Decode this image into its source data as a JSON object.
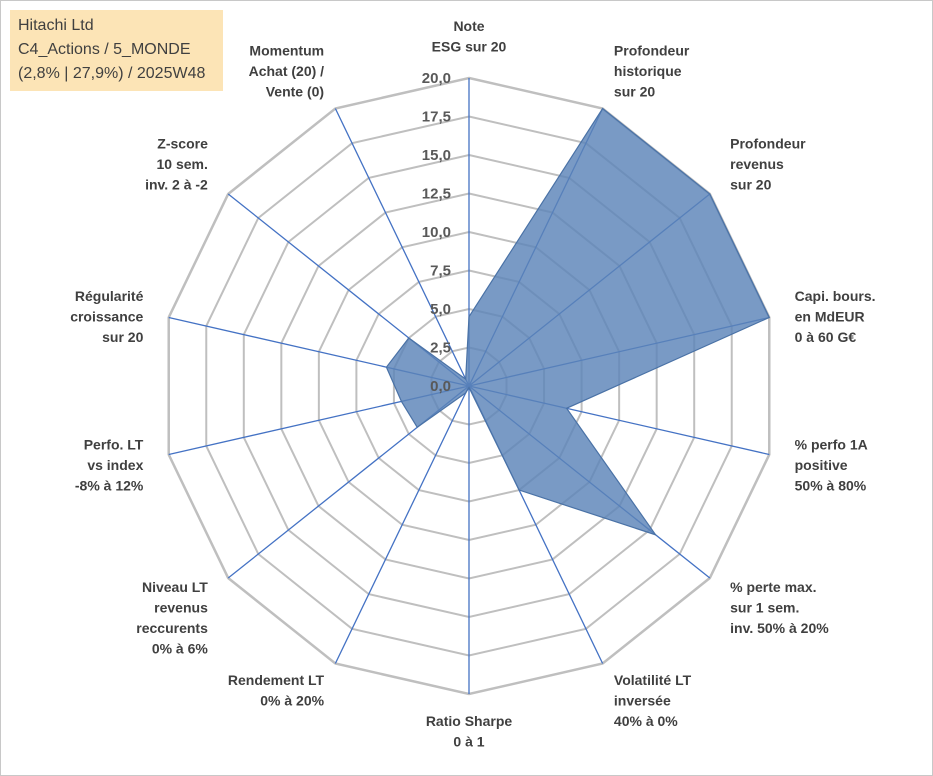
{
  "info": {
    "line1": "Hitachi Ltd",
    "line2": "C4_Actions / 5_MONDE",
    "line3": "(2,8% | 27,9%) / 2025W48"
  },
  "chart_data": {
    "type": "radar",
    "title": "",
    "rmin": 0,
    "rmax": 20,
    "tick_step": 2.5,
    "tick_labels": [
      "0,0",
      "2,5",
      "5,0",
      "7,5",
      "10,0",
      "12,5",
      "15,0",
      "17,5",
      "20,0"
    ],
    "gridlines": 8,
    "axes": [
      {
        "label": [
          "Note",
          "ESG sur 20"
        ],
        "value": 4.5
      },
      {
        "label": [
          "Profondeur",
          "historique",
          "sur 20"
        ],
        "value": 20.0
      },
      {
        "label": [
          "Profondeur",
          "revenus",
          "sur 20"
        ],
        "value": 20.0
      },
      {
        "label": [
          "Capi. bours.",
          "en MdEUR",
          "0 à 60 G€"
        ],
        "value": 20.0
      },
      {
        "label": [
          "% perfo 1A",
          "positive",
          "50% à 80%"
        ],
        "value": 6.5
      },
      {
        "label": [
          "% perte max.",
          "sur 1 sem.",
          "inv. 50% à 20%"
        ],
        "value": 15.5
      },
      {
        "label": [
          "Volatilité LT",
          "inversée",
          "40% à 0%"
        ],
        "value": 7.5
      },
      {
        "label": [
          "Ratio Sharpe",
          "0 à 1"
        ],
        "value": 0.1
      },
      {
        "label": [
          "Rendement LT",
          "0% à 20%"
        ],
        "value": 0.5
      },
      {
        "label": [
          "Niveau LT",
          "revenus",
          "reccurents",
          "0% à 6%"
        ],
        "value": 4.3
      },
      {
        "label": [
          "Perfo. LT",
          "vs index",
          "-8% à 12%"
        ],
        "value": 4.5
      },
      {
        "label": [
          "Régularité",
          "croissance",
          "sur 20"
        ],
        "value": 5.5
      },
      {
        "label": [
          "Z-score",
          "10 sem.",
          "inv. 2 à -2"
        ],
        "value": 5.0
      },
      {
        "label": [
          "Momentum",
          "Achat (20) /",
          "Vente (0)"
        ],
        "value": 0.5
      }
    ],
    "series": [
      {
        "name": "Hitachi Ltd",
        "color": "#4f79ab"
      }
    ],
    "colors": {
      "grid": "#bfbfbf",
      "spoke": "#4472c4",
      "fill": "#5b84b8",
      "stroke": "#4a72a6"
    }
  }
}
